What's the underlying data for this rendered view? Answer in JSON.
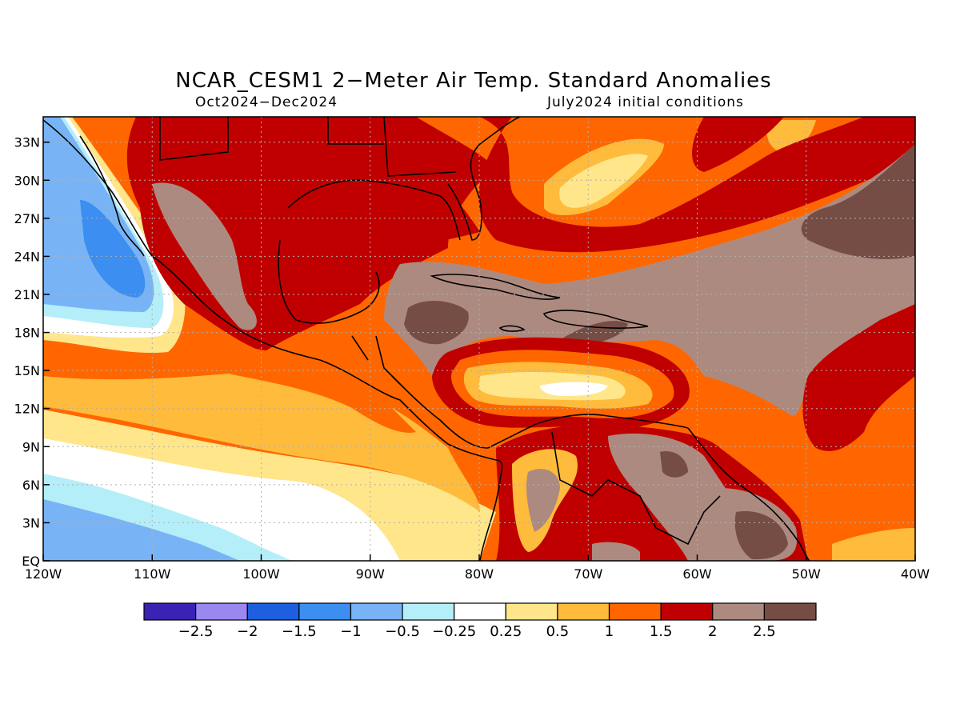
{
  "title": "NCAR_CESM1 2−Meter Air Temp. Standard Anomalies",
  "period": "Oct2024−Dec2024",
  "initial_conditions": "July2024 initial conditions",
  "lon_ticks": [
    "120W",
    "110W",
    "100W",
    "90W",
    "80W",
    "70W",
    "60W",
    "50W",
    "40W"
  ],
  "lat_ticks": [
    "EQ",
    "3N",
    "6N",
    "9N",
    "12N",
    "15N",
    "18N",
    "21N",
    "24N",
    "27N",
    "30N",
    "33N"
  ],
  "colorbar": {
    "labels": [
      "−2.5",
      "−2",
      "−1.5",
      "−1",
      "−0.5",
      "−0.25",
      "0.25",
      "0.5",
      "1",
      "1.5",
      "2",
      "2.5"
    ],
    "colors": [
      "#3a22b5",
      "#9a87f0",
      "#1e5fe0",
      "#3c8ef0",
      "#78b4f5",
      "#b4eef8",
      "#ffffff",
      "#ffe68a",
      "#ffbb3b",
      "#ff6600",
      "#c00000",
      "#ad8a80",
      "#754d45"
    ]
  },
  "map_extent": {
    "lon": [
      -120,
      -40
    ],
    "lat": [
      0,
      35
    ]
  }
}
